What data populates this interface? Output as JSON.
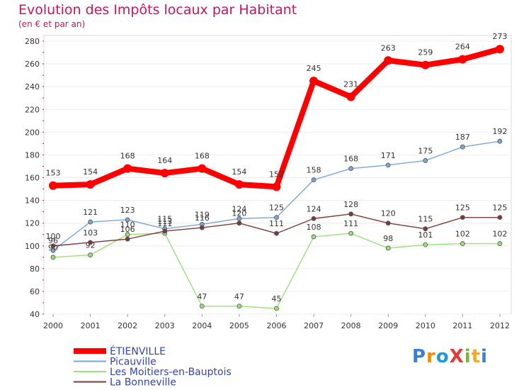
{
  "title": "Evolution des Impôts locaux par Habitant",
  "subtitle": "(en € et par an)",
  "brand": {
    "text": "ProXiti",
    "colors": [
      "#3a7fd5",
      "#f28c00",
      "#1f9ad6",
      "#e53935",
      "#7cb342",
      "#f9a825",
      "#3a7fd5"
    ]
  },
  "colors": {
    "background": "#ffffff",
    "plot_border": "#d9d9d9",
    "grid": "#ececec",
    "axis_text": "#333333",
    "title": "#c2185b"
  },
  "chart_data": {
    "type": "line",
    "x": [
      "2000",
      "2001",
      "2002",
      "2003",
      "2004",
      "2005",
      "2006",
      "2007",
      "2008",
      "2009",
      "2010",
      "2011",
      "2012"
    ],
    "ylim": [
      40,
      280
    ],
    "yticks": [
      40,
      60,
      80,
      100,
      120,
      140,
      160,
      180,
      200,
      220,
      240,
      260,
      280
    ],
    "grid": true,
    "legend_position": "bottom-left",
    "series": [
      {
        "name": "ÉTIENVILLE",
        "color": "#ff0000",
        "width": "thick",
        "labels_visible": true,
        "values": [
          153,
          154,
          168,
          164,
          168,
          154,
          152,
          245,
          231,
          263,
          259,
          264,
          273
        ]
      },
      {
        "name": "Picauville",
        "color": "#7aa7d6",
        "width": "thin",
        "labels_visible": true,
        "values": [
          96,
          121,
          123,
          115,
          119,
          124,
          125,
          158,
          168,
          171,
          175,
          187,
          192
        ]
      },
      {
        "name": "Les Moitiers-en-Bauptois",
        "color": "#99e07a",
        "width": "thin",
        "labels_visible": true,
        "values": [
          90,
          92,
          110,
          111,
          47,
          47,
          45,
          108,
          111,
          98,
          101,
          102,
          102
        ]
      },
      {
        "name": "La Bonneville",
        "color": "#7a3b3b",
        "width": "thin",
        "labels_visible": true,
        "values": [
          100,
          103,
          106,
          113,
          116,
          120,
          111,
          124,
          128,
          120,
          115,
          125,
          125
        ]
      }
    ]
  }
}
